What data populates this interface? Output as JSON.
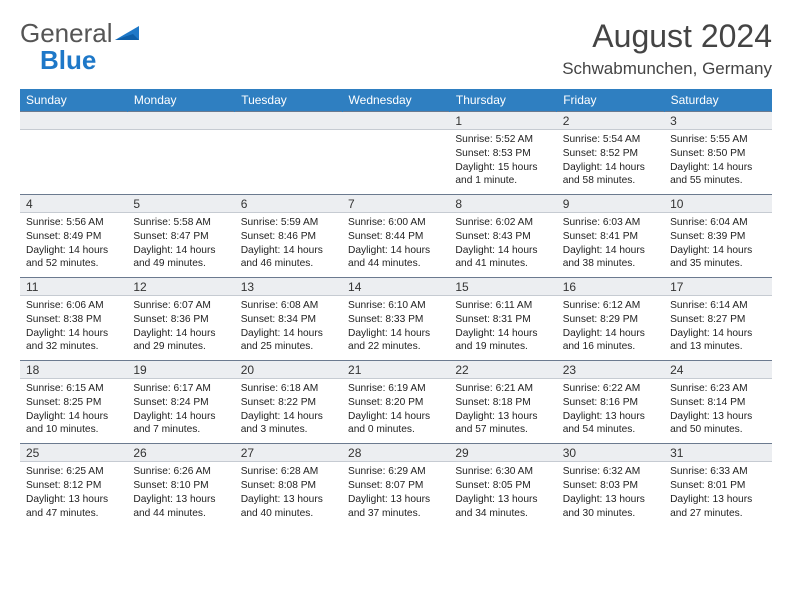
{
  "brand": {
    "part1": "General",
    "part2": "Blue"
  },
  "colors": {
    "header_bg": "#2f7fc1",
    "header_fg": "#ffffff",
    "daynum_bg": "#eceef1",
    "border_top": "#6b7a8f",
    "logo_blue": "#1e78c8"
  },
  "title": "August 2024",
  "location": "Schwabmunchen, Germany",
  "weekdays": [
    "Sunday",
    "Monday",
    "Tuesday",
    "Wednesday",
    "Thursday",
    "Friday",
    "Saturday"
  ],
  "weeks": [
    {
      "nums": [
        "",
        "",
        "",
        "",
        "1",
        "2",
        "3"
      ],
      "info": [
        "",
        "",
        "",
        "",
        "Sunrise: 5:52 AM\nSunset: 8:53 PM\nDaylight: 15 hours and 1 minute.",
        "Sunrise: 5:54 AM\nSunset: 8:52 PM\nDaylight: 14 hours and 58 minutes.",
        "Sunrise: 5:55 AM\nSunset: 8:50 PM\nDaylight: 14 hours and 55 minutes."
      ]
    },
    {
      "nums": [
        "4",
        "5",
        "6",
        "7",
        "8",
        "9",
        "10"
      ],
      "info": [
        "Sunrise: 5:56 AM\nSunset: 8:49 PM\nDaylight: 14 hours and 52 minutes.",
        "Sunrise: 5:58 AM\nSunset: 8:47 PM\nDaylight: 14 hours and 49 minutes.",
        "Sunrise: 5:59 AM\nSunset: 8:46 PM\nDaylight: 14 hours and 46 minutes.",
        "Sunrise: 6:00 AM\nSunset: 8:44 PM\nDaylight: 14 hours and 44 minutes.",
        "Sunrise: 6:02 AM\nSunset: 8:43 PM\nDaylight: 14 hours and 41 minutes.",
        "Sunrise: 6:03 AM\nSunset: 8:41 PM\nDaylight: 14 hours and 38 minutes.",
        "Sunrise: 6:04 AM\nSunset: 8:39 PM\nDaylight: 14 hours and 35 minutes."
      ]
    },
    {
      "nums": [
        "11",
        "12",
        "13",
        "14",
        "15",
        "16",
        "17"
      ],
      "info": [
        "Sunrise: 6:06 AM\nSunset: 8:38 PM\nDaylight: 14 hours and 32 minutes.",
        "Sunrise: 6:07 AM\nSunset: 8:36 PM\nDaylight: 14 hours and 29 minutes.",
        "Sunrise: 6:08 AM\nSunset: 8:34 PM\nDaylight: 14 hours and 25 minutes.",
        "Sunrise: 6:10 AM\nSunset: 8:33 PM\nDaylight: 14 hours and 22 minutes.",
        "Sunrise: 6:11 AM\nSunset: 8:31 PM\nDaylight: 14 hours and 19 minutes.",
        "Sunrise: 6:12 AM\nSunset: 8:29 PM\nDaylight: 14 hours and 16 minutes.",
        "Sunrise: 6:14 AM\nSunset: 8:27 PM\nDaylight: 14 hours and 13 minutes."
      ]
    },
    {
      "nums": [
        "18",
        "19",
        "20",
        "21",
        "22",
        "23",
        "24"
      ],
      "info": [
        "Sunrise: 6:15 AM\nSunset: 8:25 PM\nDaylight: 14 hours and 10 minutes.",
        "Sunrise: 6:17 AM\nSunset: 8:24 PM\nDaylight: 14 hours and 7 minutes.",
        "Sunrise: 6:18 AM\nSunset: 8:22 PM\nDaylight: 14 hours and 3 minutes.",
        "Sunrise: 6:19 AM\nSunset: 8:20 PM\nDaylight: 14 hours and 0 minutes.",
        "Sunrise: 6:21 AM\nSunset: 8:18 PM\nDaylight: 13 hours and 57 minutes.",
        "Sunrise: 6:22 AM\nSunset: 8:16 PM\nDaylight: 13 hours and 54 minutes.",
        "Sunrise: 6:23 AM\nSunset: 8:14 PM\nDaylight: 13 hours and 50 minutes."
      ]
    },
    {
      "nums": [
        "25",
        "26",
        "27",
        "28",
        "29",
        "30",
        "31"
      ],
      "info": [
        "Sunrise: 6:25 AM\nSunset: 8:12 PM\nDaylight: 13 hours and 47 minutes.",
        "Sunrise: 6:26 AM\nSunset: 8:10 PM\nDaylight: 13 hours and 44 minutes.",
        "Sunrise: 6:28 AM\nSunset: 8:08 PM\nDaylight: 13 hours and 40 minutes.",
        "Sunrise: 6:29 AM\nSunset: 8:07 PM\nDaylight: 13 hours and 37 minutes.",
        "Sunrise: 6:30 AM\nSunset: 8:05 PM\nDaylight: 13 hours and 34 minutes.",
        "Sunrise: 6:32 AM\nSunset: 8:03 PM\nDaylight: 13 hours and 30 minutes.",
        "Sunrise: 6:33 AM\nSunset: 8:01 PM\nDaylight: 13 hours and 27 minutes."
      ]
    }
  ]
}
